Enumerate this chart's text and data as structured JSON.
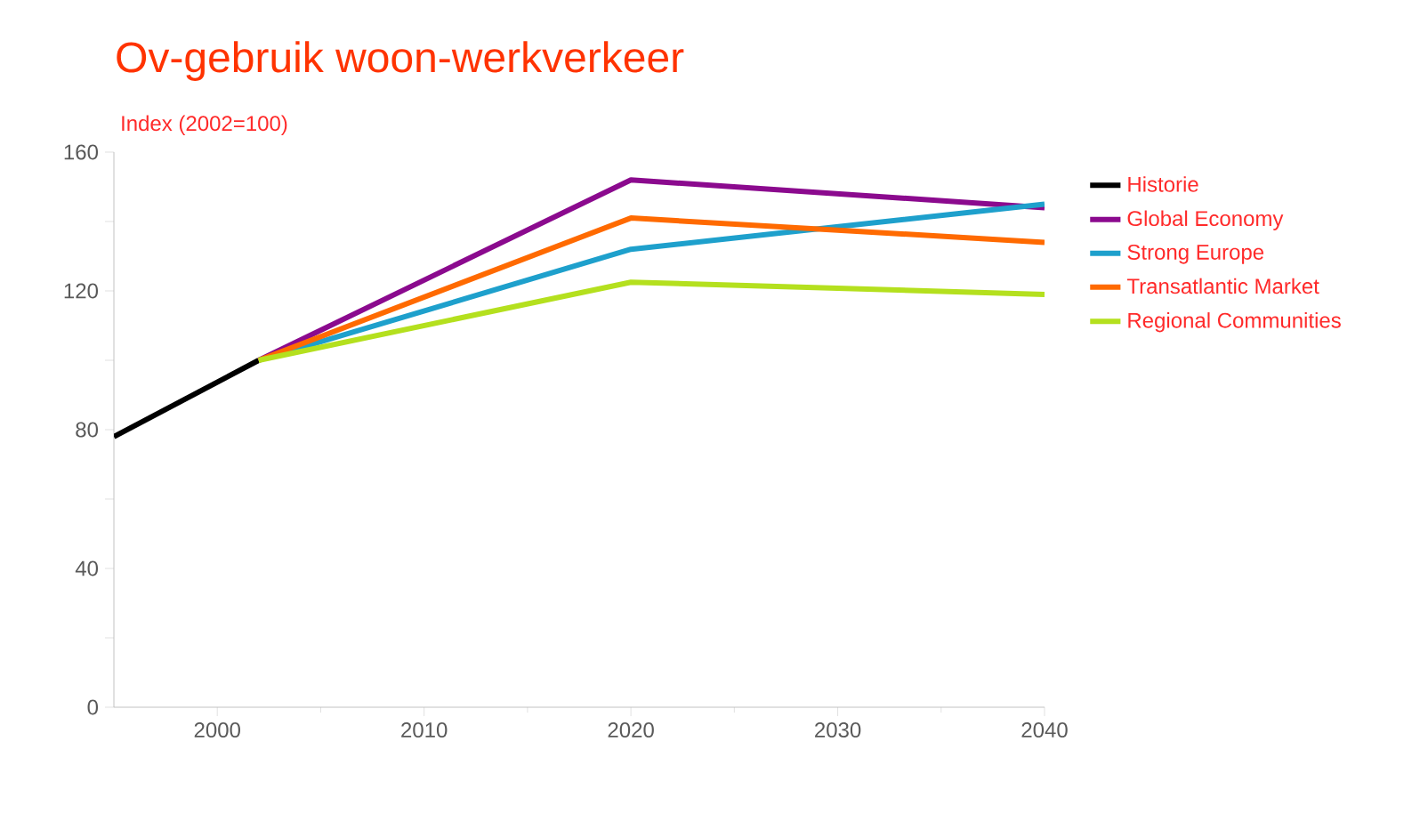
{
  "chart_data": {
    "type": "line",
    "title": "Ov-gebruik woon-werkverkeer",
    "ylabel": "Index (2002=100)",
    "xlim": [
      1995,
      2040
    ],
    "xticks": [
      2000,
      2010,
      2020,
      2030,
      2040
    ],
    "ylim": [
      0,
      160
    ],
    "yticks": [
      0,
      {
        "value": 20,
        "label": null
      },
      40,
      {
        "value": 60,
        "label": null
      },
      80,
      {
        "value": 100,
        "label": null
      },
      120,
      {
        "value": 140,
        "label": null
      },
      160
    ],
    "grid": false,
    "legend": "top right",
    "marker": "none",
    "line_style": "solid",
    "series": [
      {
        "name": "Historie",
        "color": "#000000",
        "x": [
          1995,
          2002
        ],
        "values": [
          78,
          100
        ]
      },
      {
        "name": "Global Economy",
        "color": "#8b0a8e",
        "x": [
          2002,
          2020,
          2040
        ],
        "values": [
          100,
          152,
          144
        ]
      },
      {
        "name": "Strong Europe",
        "color": "#1ea0cc",
        "x": [
          2002,
          2020,
          2040
        ],
        "values": [
          100,
          132,
          145
        ]
      },
      {
        "name": "Transatlantic Market",
        "color": "#ff6a00",
        "x": [
          2002,
          2020,
          2040
        ],
        "values": [
          100,
          141,
          134
        ]
      },
      {
        "name": "Regional Communities",
        "color": "#b4e01e",
        "x": [
          2002,
          2020,
          2040
        ],
        "values": [
          100,
          122.5,
          119
        ]
      }
    ]
  }
}
